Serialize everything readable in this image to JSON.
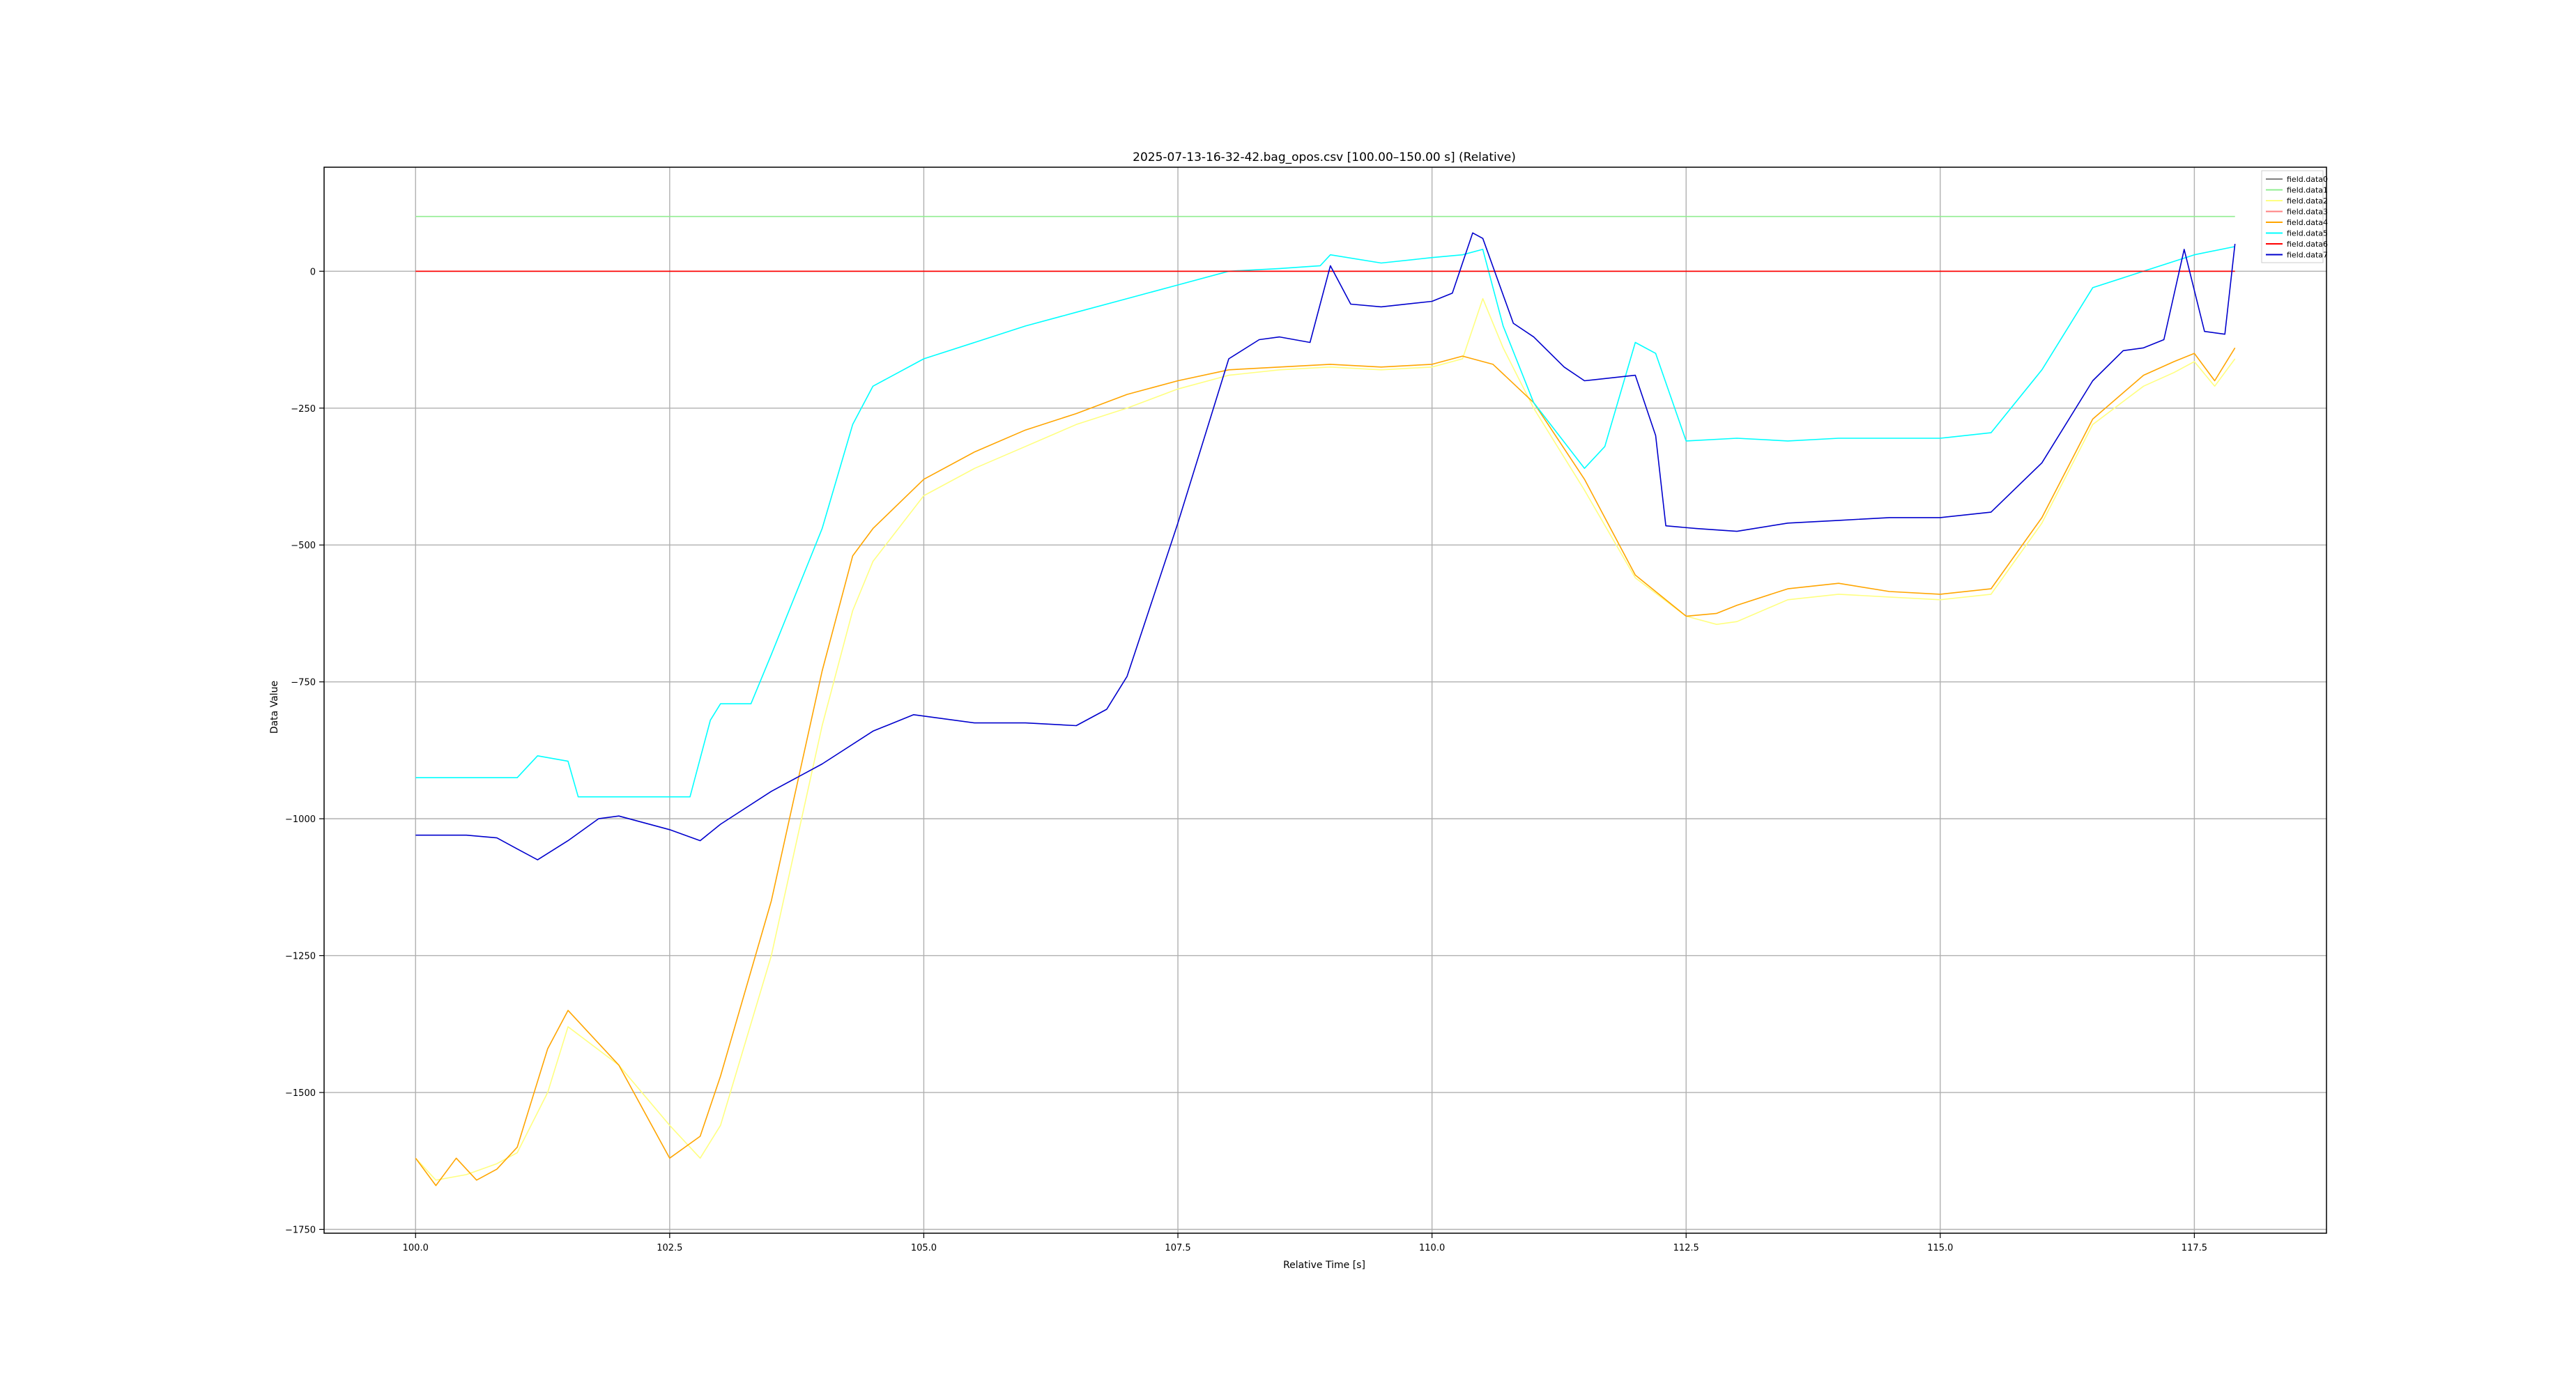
{
  "chart_data": {
    "type": "line",
    "title": "2025-07-13-16-32-42.bag_opos.csv [100.00–150.00 s]  (Relative)",
    "xlabel": "Relative Time [s]",
    "ylabel": "Data Value",
    "xlim": [
      99.1,
      118.8
    ],
    "ylim": [
      -1757,
      190
    ],
    "xticks": [
      100.0,
      102.5,
      105.0,
      107.5,
      110.0,
      112.5,
      115.0,
      117.5
    ],
    "xtick_labels": [
      "100.0",
      "102.5",
      "105.0",
      "107.5",
      "110.0",
      "112.5",
      "115.0",
      "117.5"
    ],
    "yticks": [
      -1750,
      -1500,
      -1250,
      -1000,
      -750,
      -500,
      -250,
      0
    ],
    "ytick_labels": [
      "−1750",
      "−1500",
      "−1250",
      "−1000",
      "−750",
      "−500",
      "−250",
      "0"
    ],
    "grid": true,
    "legend_position": "top-right",
    "series": [
      {
        "name": "field.data0",
        "color": "#808080",
        "x": [
          100.0,
          117.9
        ],
        "y": [
          0,
          0
        ]
      },
      {
        "name": "field.data1",
        "color": "#90ee90",
        "x": [
          100.0,
          117.9
        ],
        "y": [
          100,
          100
        ]
      },
      {
        "name": "field.data2",
        "color": "#ffff80",
        "x": [
          100.0,
          100.2,
          100.5,
          100.8,
          101.0,
          101.3,
          101.5,
          102.0,
          102.5,
          102.8,
          103.0,
          103.5,
          104.0,
          104.3,
          104.5,
          105.0,
          105.5,
          106.0,
          106.5,
          107.0,
          107.5,
          108.0,
          108.5,
          109.0,
          109.5,
          110.0,
          110.3,
          110.5,
          110.7,
          111.0,
          111.5,
          112.0,
          112.5,
          112.8,
          113.0,
          113.5,
          114.0,
          114.5,
          115.0,
          115.5,
          116.0,
          116.5,
          117.0,
          117.3,
          117.5,
          117.7,
          117.9
        ],
        "y": [
          -1620,
          -1660,
          -1650,
          -1630,
          -1610,
          -1500,
          -1380,
          -1450,
          -1560,
          -1620,
          -1560,
          -1250,
          -830,
          -620,
          -530,
          -410,
          -360,
          -320,
          -280,
          -250,
          -215,
          -190,
          -180,
          -175,
          -180,
          -175,
          -160,
          -50,
          -140,
          -250,
          -400,
          -560,
          -630,
          -645,
          -640,
          -600,
          -590,
          -595,
          -600,
          -590,
          -460,
          -280,
          -210,
          -185,
          -165,
          -210,
          -160
        ]
      },
      {
        "name": "field.data3",
        "color": "#ff8080",
        "x": [
          100.0,
          117.9
        ],
        "y": [
          0,
          0
        ]
      },
      {
        "name": "field.data4",
        "color": "#ffa500",
        "x": [
          100.0,
          100.2,
          100.4,
          100.6,
          100.8,
          101.0,
          101.3,
          101.5,
          102.0,
          102.5,
          102.8,
          103.0,
          103.5,
          104.0,
          104.3,
          104.5,
          105.0,
          105.5,
          106.0,
          106.5,
          107.0,
          107.5,
          108.0,
          108.5,
          109.0,
          109.5,
          110.0,
          110.3,
          110.6,
          111.0,
          111.5,
          112.0,
          112.5,
          112.8,
          113.0,
          113.5,
          114.0,
          114.5,
          115.0,
          115.5,
          116.0,
          116.5,
          117.0,
          117.3,
          117.5,
          117.7,
          117.9
        ],
        "y": [
          -1620,
          -1670,
          -1620,
          -1660,
          -1640,
          -1600,
          -1420,
          -1350,
          -1450,
          -1620,
          -1580,
          -1470,
          -1150,
          -730,
          -520,
          -470,
          -380,
          -330,
          -290,
          -260,
          -225,
          -200,
          -180,
          -175,
          -170,
          -175,
          -170,
          -155,
          -170,
          -240,
          -380,
          -555,
          -630,
          -625,
          -610,
          -580,
          -570,
          -585,
          -590,
          -580,
          -450,
          -270,
          -190,
          -165,
          -150,
          -200,
          -140
        ]
      },
      {
        "name": "field.data5",
        "color": "#00ffff",
        "x": [
          100.0,
          101.0,
          101.2,
          101.5,
          101.6,
          102.0,
          102.5,
          102.7,
          102.9,
          103.0,
          103.3,
          103.5,
          104.0,
          104.3,
          104.5,
          105.0,
          105.5,
          106.0,
          106.5,
          107.0,
          107.5,
          108.0,
          108.5,
          108.9,
          109.0,
          109.5,
          110.0,
          110.3,
          110.5,
          110.7,
          111.0,
          111.5,
          111.7,
          112.0,
          112.2,
          112.5,
          113.0,
          113.5,
          114.0,
          114.5,
          115.0,
          115.5,
          116.0,
          116.5,
          117.0,
          117.5,
          117.9
        ],
        "y": [
          -925,
          -925,
          -885,
          -895,
          -960,
          -960,
          -960,
          -960,
          -820,
          -790,
          -790,
          -700,
          -470,
          -280,
          -210,
          -160,
          -130,
          -100,
          -75,
          -50,
          -25,
          0,
          5,
          10,
          30,
          15,
          25,
          30,
          40,
          -100,
          -240,
          -360,
          -320,
          -130,
          -150,
          -310,
          -305,
          -310,
          -305,
          -305,
          -305,
          -295,
          -180,
          -30,
          0,
          30,
          45
        ]
      },
      {
        "name": "field.data6",
        "color": "#ff0000",
        "x": [
          100.0,
          117.9
        ],
        "y": [
          0,
          0
        ]
      },
      {
        "name": "field.data7",
        "color": "#0000cd",
        "x": [
          100.0,
          100.5,
          100.8,
          101.0,
          101.2,
          101.5,
          101.8,
          102.0,
          102.5,
          102.8,
          103.0,
          103.5,
          104.0,
          104.5,
          104.9,
          105.5,
          106.0,
          106.5,
          106.8,
          107.0,
          107.5,
          108.0,
          108.3,
          108.5,
          108.8,
          109.0,
          109.2,
          109.5,
          110.0,
          110.2,
          110.4,
          110.5,
          110.8,
          111.0,
          111.3,
          111.5,
          112.0,
          112.2,
          112.3,
          112.6,
          113.0,
          113.5,
          114.0,
          114.5,
          115.0,
          115.5,
          116.0,
          116.5,
          116.8,
          117.0,
          117.2,
          117.4,
          117.6,
          117.8,
          117.9
        ],
        "y": [
          -1030,
          -1030,
          -1035,
          -1055,
          -1075,
          -1040,
          -1000,
          -995,
          -1020,
          -1040,
          -1010,
          -950,
          -900,
          -840,
          -810,
          -825,
          -825,
          -830,
          -800,
          -740,
          -460,
          -160,
          -125,
          -120,
          -130,
          10,
          -60,
          -65,
          -55,
          -40,
          70,
          60,
          -95,
          -120,
          -175,
          -200,
          -190,
          -300,
          -465,
          -470,
          -475,
          -460,
          -455,
          -450,
          -450,
          -440,
          -350,
          -200,
          -145,
          -140,
          -125,
          40,
          -110,
          -115,
          50
        ]
      }
    ]
  }
}
